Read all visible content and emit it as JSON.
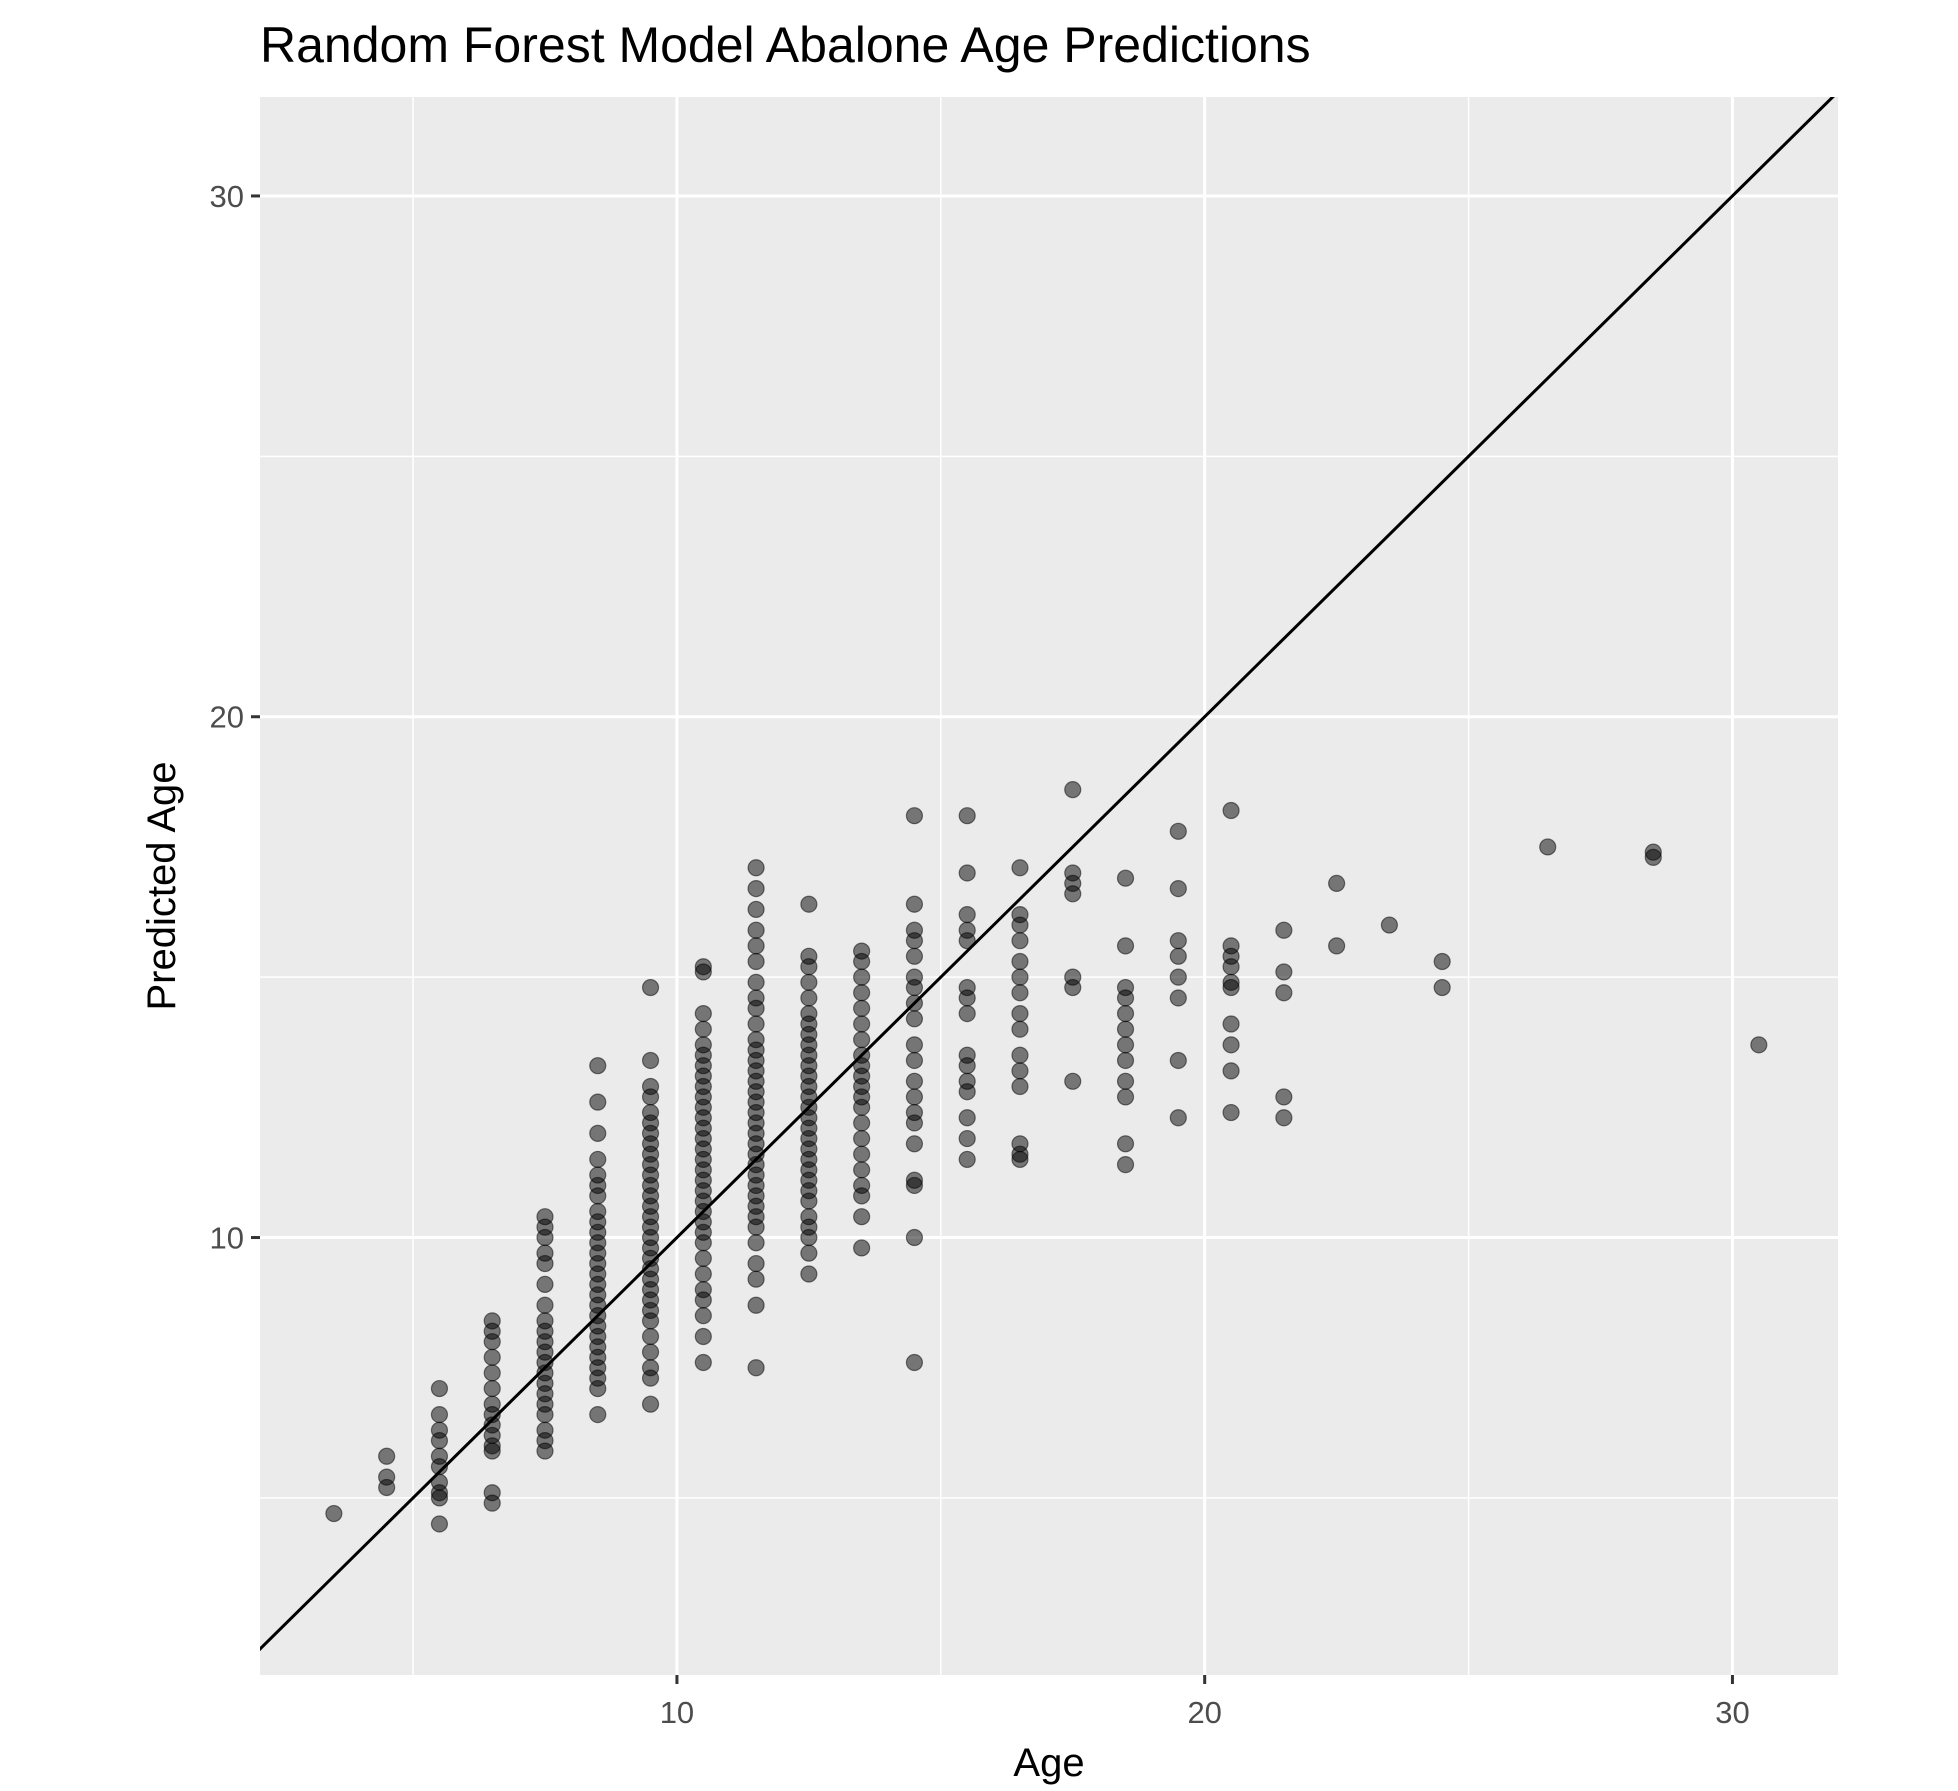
{
  "chart_data": {
    "type": "scatter",
    "title": "Random Forest Model Abalone Age Predictions",
    "xlabel": "Age",
    "ylabel": "Predicted Age",
    "xlim": [
      2.1,
      32.0
    ],
    "ylim": [
      1.6,
      31.9
    ],
    "x_ticks": [
      10,
      20,
      30
    ],
    "x_tick_labels": [
      "10",
      "20",
      "30"
    ],
    "x_minor_ticks": [
      5,
      15,
      25
    ],
    "y_ticks": [
      10,
      20,
      30
    ],
    "y_tick_labels": [
      "10",
      "20",
      "30"
    ],
    "y_minor_ticks": [
      5,
      15,
      25
    ],
    "grid": true,
    "panel_background": "#ebebeb",
    "grid_color": "#ffffff",
    "point_color": "#000000",
    "point_opacity": 0.5,
    "reference_line": {
      "type": "identity",
      "slope": 1,
      "intercept": 0,
      "color": "#000000"
    },
    "points": [
      {
        "x": 3.5,
        "y": 4.7
      },
      {
        "x": 4.5,
        "y": 5.8
      },
      {
        "x": 4.5,
        "y": 5.4
      },
      {
        "x": 4.5,
        "y": 5.2
      },
      {
        "x": 5.5,
        "y": 7.1
      },
      {
        "x": 5.5,
        "y": 6.6
      },
      {
        "x": 5.5,
        "y": 6.3
      },
      {
        "x": 5.5,
        "y": 6.1
      },
      {
        "x": 5.5,
        "y": 5.8
      },
      {
        "x": 5.5,
        "y": 5.6
      },
      {
        "x": 5.5,
        "y": 5.3
      },
      {
        "x": 5.5,
        "y": 5.1
      },
      {
        "x": 5.5,
        "y": 5.0
      },
      {
        "x": 5.5,
        "y": 4.5
      },
      {
        "x": 6.5,
        "y": 8.4
      },
      {
        "x": 6.5,
        "y": 8.2
      },
      {
        "x": 6.5,
        "y": 8.0
      },
      {
        "x": 6.5,
        "y": 7.7
      },
      {
        "x": 6.5,
        "y": 7.4
      },
      {
        "x": 6.5,
        "y": 7.1
      },
      {
        "x": 6.5,
        "y": 6.8
      },
      {
        "x": 6.5,
        "y": 6.6
      },
      {
        "x": 6.5,
        "y": 6.4
      },
      {
        "x": 6.5,
        "y": 6.2
      },
      {
        "x": 6.5,
        "y": 6.0
      },
      {
        "x": 6.5,
        "y": 5.9
      },
      {
        "x": 6.5,
        "y": 5.1
      },
      {
        "x": 6.5,
        "y": 4.9
      },
      {
        "x": 7.5,
        "y": 10.4
      },
      {
        "x": 7.5,
        "y": 10.2
      },
      {
        "x": 7.5,
        "y": 10.0
      },
      {
        "x": 7.5,
        "y": 9.7
      },
      {
        "x": 7.5,
        "y": 9.5
      },
      {
        "x": 7.5,
        "y": 9.1
      },
      {
        "x": 7.5,
        "y": 8.7
      },
      {
        "x": 7.5,
        "y": 8.4
      },
      {
        "x": 7.5,
        "y": 8.2
      },
      {
        "x": 7.5,
        "y": 8.0
      },
      {
        "x": 7.5,
        "y": 7.8
      },
      {
        "x": 7.5,
        "y": 7.6
      },
      {
        "x": 7.5,
        "y": 7.4
      },
      {
        "x": 7.5,
        "y": 7.2
      },
      {
        "x": 7.5,
        "y": 7.0
      },
      {
        "x": 7.5,
        "y": 6.8
      },
      {
        "x": 7.5,
        "y": 6.6
      },
      {
        "x": 7.5,
        "y": 6.3
      },
      {
        "x": 7.5,
        "y": 6.1
      },
      {
        "x": 7.5,
        "y": 5.9
      },
      {
        "x": 8.5,
        "y": 13.3
      },
      {
        "x": 8.5,
        "y": 12.6
      },
      {
        "x": 8.5,
        "y": 12.0
      },
      {
        "x": 8.5,
        "y": 11.5
      },
      {
        "x": 8.5,
        "y": 11.2
      },
      {
        "x": 8.5,
        "y": 11.0
      },
      {
        "x": 8.5,
        "y": 10.8
      },
      {
        "x": 8.5,
        "y": 10.5
      },
      {
        "x": 8.5,
        "y": 10.3
      },
      {
        "x": 8.5,
        "y": 10.1
      },
      {
        "x": 8.5,
        "y": 9.9
      },
      {
        "x": 8.5,
        "y": 9.7
      },
      {
        "x": 8.5,
        "y": 9.5
      },
      {
        "x": 8.5,
        "y": 9.3
      },
      {
        "x": 8.5,
        "y": 9.1
      },
      {
        "x": 8.5,
        "y": 8.9
      },
      {
        "x": 8.5,
        "y": 8.7
      },
      {
        "x": 8.5,
        "y": 8.5
      },
      {
        "x": 8.5,
        "y": 8.3
      },
      {
        "x": 8.5,
        "y": 8.1
      },
      {
        "x": 8.5,
        "y": 7.9
      },
      {
        "x": 8.5,
        "y": 7.7
      },
      {
        "x": 8.5,
        "y": 7.5
      },
      {
        "x": 8.5,
        "y": 7.3
      },
      {
        "x": 8.5,
        "y": 7.1
      },
      {
        "x": 8.5,
        "y": 6.6
      },
      {
        "x": 9.5,
        "y": 14.8
      },
      {
        "x": 9.5,
        "y": 13.4
      },
      {
        "x": 9.5,
        "y": 12.9
      },
      {
        "x": 9.5,
        "y": 12.7
      },
      {
        "x": 9.5,
        "y": 12.4
      },
      {
        "x": 9.5,
        "y": 12.2
      },
      {
        "x": 9.5,
        "y": 12.0
      },
      {
        "x": 9.5,
        "y": 11.8
      },
      {
        "x": 9.5,
        "y": 11.6
      },
      {
        "x": 9.5,
        "y": 11.4
      },
      {
        "x": 9.5,
        "y": 11.2
      },
      {
        "x": 9.5,
        "y": 11.0
      },
      {
        "x": 9.5,
        "y": 10.8
      },
      {
        "x": 9.5,
        "y": 10.6
      },
      {
        "x": 9.5,
        "y": 10.4
      },
      {
        "x": 9.5,
        "y": 10.2
      },
      {
        "x": 9.5,
        "y": 10.0
      },
      {
        "x": 9.5,
        "y": 9.8
      },
      {
        "x": 9.5,
        "y": 9.6
      },
      {
        "x": 9.5,
        "y": 9.4
      },
      {
        "x": 9.5,
        "y": 9.2
      },
      {
        "x": 9.5,
        "y": 9.0
      },
      {
        "x": 9.5,
        "y": 8.8
      },
      {
        "x": 9.5,
        "y": 8.6
      },
      {
        "x": 9.5,
        "y": 8.4
      },
      {
        "x": 9.5,
        "y": 8.1
      },
      {
        "x": 9.5,
        "y": 7.8
      },
      {
        "x": 9.5,
        "y": 7.5
      },
      {
        "x": 9.5,
        "y": 7.3
      },
      {
        "x": 9.5,
        "y": 6.8
      },
      {
        "x": 10.5,
        "y": 15.2
      },
      {
        "x": 10.5,
        "y": 15.1
      },
      {
        "x": 10.5,
        "y": 14.3
      },
      {
        "x": 10.5,
        "y": 14.0
      },
      {
        "x": 10.5,
        "y": 13.7
      },
      {
        "x": 10.5,
        "y": 13.5
      },
      {
        "x": 10.5,
        "y": 13.3
      },
      {
        "x": 10.5,
        "y": 13.1
      },
      {
        "x": 10.5,
        "y": 12.9
      },
      {
        "x": 10.5,
        "y": 12.7
      },
      {
        "x": 10.5,
        "y": 12.5
      },
      {
        "x": 10.5,
        "y": 12.3
      },
      {
        "x": 10.5,
        "y": 12.1
      },
      {
        "x": 10.5,
        "y": 11.9
      },
      {
        "x": 10.5,
        "y": 11.7
      },
      {
        "x": 10.5,
        "y": 11.5
      },
      {
        "x": 10.5,
        "y": 11.3
      },
      {
        "x": 10.5,
        "y": 11.1
      },
      {
        "x": 10.5,
        "y": 10.9
      },
      {
        "x": 10.5,
        "y": 10.7
      },
      {
        "x": 10.5,
        "y": 10.5
      },
      {
        "x": 10.5,
        "y": 10.3
      },
      {
        "x": 10.5,
        "y": 10.1
      },
      {
        "x": 10.5,
        "y": 9.9
      },
      {
        "x": 10.5,
        "y": 9.6
      },
      {
        "x": 10.5,
        "y": 9.3
      },
      {
        "x": 10.5,
        "y": 9.0
      },
      {
        "x": 10.5,
        "y": 8.8
      },
      {
        "x": 10.5,
        "y": 8.5
      },
      {
        "x": 10.5,
        "y": 8.1
      },
      {
        "x": 10.5,
        "y": 7.6
      },
      {
        "x": 11.5,
        "y": 17.1
      },
      {
        "x": 11.5,
        "y": 16.7
      },
      {
        "x": 11.5,
        "y": 16.3
      },
      {
        "x": 11.5,
        "y": 15.9
      },
      {
        "x": 11.5,
        "y": 15.6
      },
      {
        "x": 11.5,
        "y": 15.3
      },
      {
        "x": 11.5,
        "y": 14.9
      },
      {
        "x": 11.5,
        "y": 14.6
      },
      {
        "x": 11.5,
        "y": 14.4
      },
      {
        "x": 11.5,
        "y": 14.1
      },
      {
        "x": 11.5,
        "y": 13.8
      },
      {
        "x": 11.5,
        "y": 13.6
      },
      {
        "x": 11.5,
        "y": 13.4
      },
      {
        "x": 11.5,
        "y": 13.2
      },
      {
        "x": 11.5,
        "y": 13.0
      },
      {
        "x": 11.5,
        "y": 12.8
      },
      {
        "x": 11.5,
        "y": 12.6
      },
      {
        "x": 11.5,
        "y": 12.4
      },
      {
        "x": 11.5,
        "y": 12.2
      },
      {
        "x": 11.5,
        "y": 12.0
      },
      {
        "x": 11.5,
        "y": 11.8
      },
      {
        "x": 11.5,
        "y": 11.6
      },
      {
        "x": 11.5,
        "y": 11.4
      },
      {
        "x": 11.5,
        "y": 11.2
      },
      {
        "x": 11.5,
        "y": 11.0
      },
      {
        "x": 11.5,
        "y": 10.8
      },
      {
        "x": 11.5,
        "y": 10.6
      },
      {
        "x": 11.5,
        "y": 10.4
      },
      {
        "x": 11.5,
        "y": 10.2
      },
      {
        "x": 11.5,
        "y": 9.9
      },
      {
        "x": 11.5,
        "y": 9.5
      },
      {
        "x": 11.5,
        "y": 9.2
      },
      {
        "x": 11.5,
        "y": 8.7
      },
      {
        "x": 11.5,
        "y": 7.5
      },
      {
        "x": 12.5,
        "y": 16.4
      },
      {
        "x": 12.5,
        "y": 15.4
      },
      {
        "x": 12.5,
        "y": 15.2
      },
      {
        "x": 12.5,
        "y": 14.9
      },
      {
        "x": 12.5,
        "y": 14.6
      },
      {
        "x": 12.5,
        "y": 14.3
      },
      {
        "x": 12.5,
        "y": 14.1
      },
      {
        "x": 12.5,
        "y": 13.9
      },
      {
        "x": 12.5,
        "y": 13.7
      },
      {
        "x": 12.5,
        "y": 13.5
      },
      {
        "x": 12.5,
        "y": 13.3
      },
      {
        "x": 12.5,
        "y": 13.1
      },
      {
        "x": 12.5,
        "y": 12.9
      },
      {
        "x": 12.5,
        "y": 12.7
      },
      {
        "x": 12.5,
        "y": 12.5
      },
      {
        "x": 12.5,
        "y": 12.3
      },
      {
        "x": 12.5,
        "y": 12.1
      },
      {
        "x": 12.5,
        "y": 11.9
      },
      {
        "x": 12.5,
        "y": 11.7
      },
      {
        "x": 12.5,
        "y": 11.5
      },
      {
        "x": 12.5,
        "y": 11.3
      },
      {
        "x": 12.5,
        "y": 11.1
      },
      {
        "x": 12.5,
        "y": 10.9
      },
      {
        "x": 12.5,
        "y": 10.7
      },
      {
        "x": 12.5,
        "y": 10.4
      },
      {
        "x": 12.5,
        "y": 10.2
      },
      {
        "x": 12.5,
        "y": 10.0
      },
      {
        "x": 12.5,
        "y": 9.7
      },
      {
        "x": 12.5,
        "y": 9.3
      },
      {
        "x": 13.5,
        "y": 15.5
      },
      {
        "x": 13.5,
        "y": 15.3
      },
      {
        "x": 13.5,
        "y": 15.0
      },
      {
        "x": 13.5,
        "y": 14.7
      },
      {
        "x": 13.5,
        "y": 14.4
      },
      {
        "x": 13.5,
        "y": 14.1
      },
      {
        "x": 13.5,
        "y": 13.8
      },
      {
        "x": 13.5,
        "y": 13.5
      },
      {
        "x": 13.5,
        "y": 13.3
      },
      {
        "x": 13.5,
        "y": 13.1
      },
      {
        "x": 13.5,
        "y": 12.9
      },
      {
        "x": 13.5,
        "y": 12.7
      },
      {
        "x": 13.5,
        "y": 12.5
      },
      {
        "x": 13.5,
        "y": 12.2
      },
      {
        "x": 13.5,
        "y": 11.9
      },
      {
        "x": 13.5,
        "y": 11.6
      },
      {
        "x": 13.5,
        "y": 11.3
      },
      {
        "x": 13.5,
        "y": 11.0
      },
      {
        "x": 13.5,
        "y": 10.8
      },
      {
        "x": 13.5,
        "y": 10.4
      },
      {
        "x": 13.5,
        "y": 9.8
      },
      {
        "x": 14.5,
        "y": 18.1
      },
      {
        "x": 14.5,
        "y": 16.4
      },
      {
        "x": 14.5,
        "y": 15.9
      },
      {
        "x": 14.5,
        "y": 15.7
      },
      {
        "x": 14.5,
        "y": 15.4
      },
      {
        "x": 14.5,
        "y": 15.0
      },
      {
        "x": 14.5,
        "y": 14.8
      },
      {
        "x": 14.5,
        "y": 14.5
      },
      {
        "x": 14.5,
        "y": 14.2
      },
      {
        "x": 14.5,
        "y": 13.7
      },
      {
        "x": 14.5,
        "y": 13.4
      },
      {
        "x": 14.5,
        "y": 13.0
      },
      {
        "x": 14.5,
        "y": 12.7
      },
      {
        "x": 14.5,
        "y": 12.4
      },
      {
        "x": 14.5,
        "y": 12.2
      },
      {
        "x": 14.5,
        "y": 11.8
      },
      {
        "x": 14.5,
        "y": 11.1
      },
      {
        "x": 14.5,
        "y": 11.0
      },
      {
        "x": 14.5,
        "y": 10.0
      },
      {
        "x": 14.5,
        "y": 7.6
      },
      {
        "x": 15.5,
        "y": 18.1
      },
      {
        "x": 15.5,
        "y": 17.0
      },
      {
        "x": 15.5,
        "y": 16.2
      },
      {
        "x": 15.5,
        "y": 15.9
      },
      {
        "x": 15.5,
        "y": 15.7
      },
      {
        "x": 15.5,
        "y": 14.8
      },
      {
        "x": 15.5,
        "y": 14.6
      },
      {
        "x": 15.5,
        "y": 14.3
      },
      {
        "x": 15.5,
        "y": 13.5
      },
      {
        "x": 15.5,
        "y": 13.3
      },
      {
        "x": 15.5,
        "y": 13.0
      },
      {
        "x": 15.5,
        "y": 12.8
      },
      {
        "x": 15.5,
        "y": 12.3
      },
      {
        "x": 15.5,
        "y": 11.9
      },
      {
        "x": 15.5,
        "y": 11.5
      },
      {
        "x": 16.5,
        "y": 17.1
      },
      {
        "x": 16.5,
        "y": 16.2
      },
      {
        "x": 16.5,
        "y": 16.0
      },
      {
        "x": 16.5,
        "y": 15.7
      },
      {
        "x": 16.5,
        "y": 15.3
      },
      {
        "x": 16.5,
        "y": 15.0
      },
      {
        "x": 16.5,
        "y": 14.7
      },
      {
        "x": 16.5,
        "y": 14.3
      },
      {
        "x": 16.5,
        "y": 14.0
      },
      {
        "x": 16.5,
        "y": 13.5
      },
      {
        "x": 16.5,
        "y": 13.2
      },
      {
        "x": 16.5,
        "y": 12.9
      },
      {
        "x": 16.5,
        "y": 11.8
      },
      {
        "x": 16.5,
        "y": 11.6
      },
      {
        "x": 16.5,
        "y": 11.5
      },
      {
        "x": 17.5,
        "y": 18.6
      },
      {
        "x": 17.5,
        "y": 17.0
      },
      {
        "x": 17.5,
        "y": 16.8
      },
      {
        "x": 17.5,
        "y": 16.6
      },
      {
        "x": 17.5,
        "y": 15.0
      },
      {
        "x": 17.5,
        "y": 14.8
      },
      {
        "x": 17.5,
        "y": 13.0
      },
      {
        "x": 18.5,
        "y": 16.9
      },
      {
        "x": 18.5,
        "y": 15.6
      },
      {
        "x": 18.5,
        "y": 14.8
      },
      {
        "x": 18.5,
        "y": 14.6
      },
      {
        "x": 18.5,
        "y": 14.3
      },
      {
        "x": 18.5,
        "y": 14.0
      },
      {
        "x": 18.5,
        "y": 13.7
      },
      {
        "x": 18.5,
        "y": 13.4
      },
      {
        "x": 18.5,
        "y": 13.0
      },
      {
        "x": 18.5,
        "y": 12.7
      },
      {
        "x": 18.5,
        "y": 11.8
      },
      {
        "x": 18.5,
        "y": 11.4
      },
      {
        "x": 19.5,
        "y": 17.8
      },
      {
        "x": 19.5,
        "y": 16.7
      },
      {
        "x": 19.5,
        "y": 15.7
      },
      {
        "x": 19.5,
        "y": 15.4
      },
      {
        "x": 19.5,
        "y": 15.0
      },
      {
        "x": 19.5,
        "y": 14.6
      },
      {
        "x": 19.5,
        "y": 13.4
      },
      {
        "x": 19.5,
        "y": 12.3
      },
      {
        "x": 20.5,
        "y": 18.2
      },
      {
        "x": 20.5,
        "y": 15.6
      },
      {
        "x": 20.5,
        "y": 15.4
      },
      {
        "x": 20.5,
        "y": 15.2
      },
      {
        "x": 20.5,
        "y": 14.9
      },
      {
        "x": 20.5,
        "y": 14.8
      },
      {
        "x": 20.5,
        "y": 14.1
      },
      {
        "x": 20.5,
        "y": 13.7
      },
      {
        "x": 20.5,
        "y": 13.2
      },
      {
        "x": 20.5,
        "y": 12.4
      },
      {
        "x": 21.5,
        "y": 15.9
      },
      {
        "x": 21.5,
        "y": 15.1
      },
      {
        "x": 21.5,
        "y": 14.7
      },
      {
        "x": 21.5,
        "y": 12.7
      },
      {
        "x": 21.5,
        "y": 12.3
      },
      {
        "x": 22.5,
        "y": 16.8
      },
      {
        "x": 22.5,
        "y": 15.6
      },
      {
        "x": 23.5,
        "y": 16.0
      },
      {
        "x": 24.5,
        "y": 15.3
      },
      {
        "x": 24.5,
        "y": 14.8
      },
      {
        "x": 26.5,
        "y": 17.5
      },
      {
        "x": 28.5,
        "y": 17.4
      },
      {
        "x": 28.5,
        "y": 17.3
      },
      {
        "x": 30.5,
        "y": 13.7
      }
    ]
  }
}
